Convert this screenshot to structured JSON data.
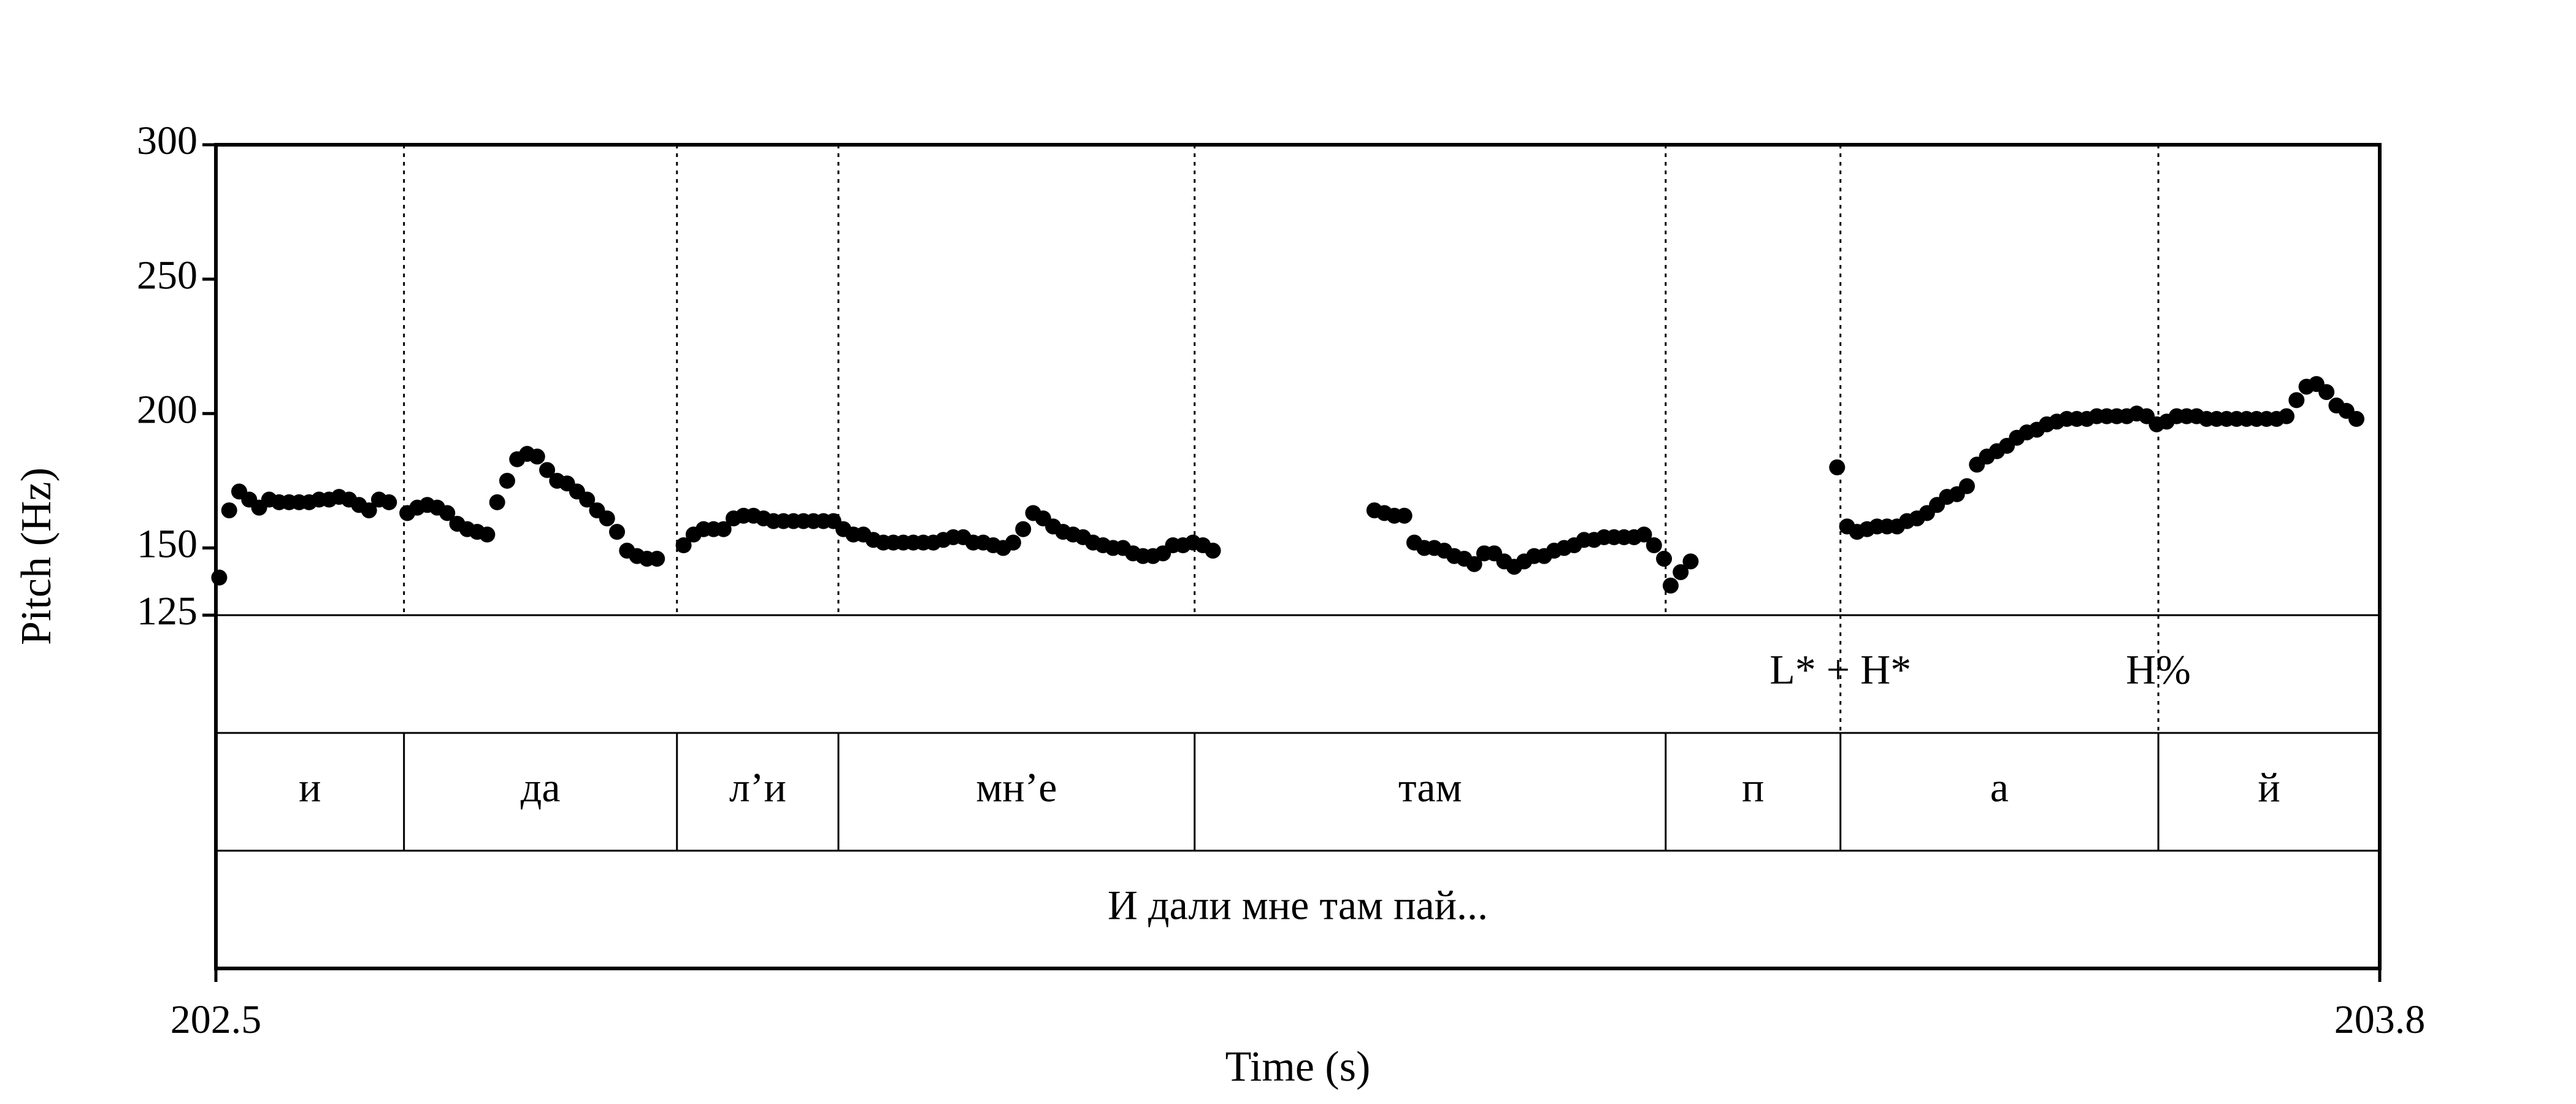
{
  "chart_data": {
    "type": "scatter",
    "xlabel": "Time (s)",
    "ylabel": "Pitch (Hz)",
    "xlim": [
      202.5,
      203.8
    ],
    "ylim": [
      125,
      300
    ],
    "x_ticks": [
      "202.5",
      "203.8"
    ],
    "y_ticks": [
      {
        "value": 300,
        "label": "300"
      },
      {
        "value": 250,
        "label": "250"
      },
      {
        "value": 200,
        "label": "200"
      },
      {
        "value": 150,
        "label": "150"
      },
      {
        "value": 125,
        "label": "125"
      }
    ],
    "boundaries": [
      202.613,
      202.777,
      202.874,
      203.088,
      203.371,
      203.476,
      203.667
    ],
    "tones": [
      {
        "label": "L* + H*",
        "time": 203.476
      },
      {
        "label": "H%",
        "time": 203.667
      }
    ],
    "segments": [
      {
        "label": "и",
        "start": 202.5,
        "end": 202.613
      },
      {
        "label": "да",
        "start": 202.613,
        "end": 202.777
      },
      {
        "label": "л’и",
        "start": 202.777,
        "end": 202.874
      },
      {
        "label": "мн’е",
        "start": 202.874,
        "end": 203.088
      },
      {
        "label": "там",
        "start": 203.088,
        "end": 203.371
      },
      {
        "label": "п",
        "start": 203.371,
        "end": 203.476
      },
      {
        "label": "а",
        "start": 203.476,
        "end": 203.667
      },
      {
        "label": "й",
        "start": 203.667,
        "end": 203.8
      }
    ],
    "sentence": "И дали мне там пай...",
    "series": [
      {
        "values": [
          [
            202.502,
            139
          ],
          [
            202.508,
            164
          ],
          [
            202.514,
            171
          ],
          [
            202.52,
            168
          ],
          [
            202.526,
            165
          ],
          [
            202.532,
            168
          ],
          [
            202.538,
            167
          ],
          [
            202.544,
            167
          ],
          [
            202.55,
            167
          ],
          [
            202.556,
            167
          ],
          [
            202.562,
            168
          ],
          [
            202.568,
            168
          ],
          [
            202.574,
            169
          ],
          [
            202.58,
            168
          ],
          [
            202.586,
            166
          ],
          [
            202.592,
            164
          ],
          [
            202.598,
            168
          ],
          [
            202.604,
            167
          ],
          [
            202.615,
            163
          ],
          [
            202.621,
            165
          ],
          [
            202.627,
            166
          ],
          [
            202.633,
            165
          ],
          [
            202.639,
            163
          ],
          [
            202.645,
            159
          ],
          [
            202.651,
            157
          ],
          [
            202.657,
            156
          ],
          [
            202.663,
            155
          ],
          [
            202.669,
            167
          ],
          [
            202.675,
            175
          ],
          [
            202.681,
            183
          ],
          [
            202.687,
            185
          ],
          [
            202.693,
            184
          ],
          [
            202.699,
            179
          ],
          [
            202.705,
            175
          ],
          [
            202.711,
            174
          ],
          [
            202.717,
            171
          ],
          [
            202.723,
            168
          ],
          [
            202.729,
            164
          ],
          [
            202.735,
            161
          ],
          [
            202.741,
            156
          ],
          [
            202.747,
            149
          ],
          [
            202.753,
            147
          ],
          [
            202.759,
            146
          ],
          [
            202.765,
            146
          ],
          [
            202.781,
            151
          ],
          [
            202.787,
            155
          ],
          [
            202.793,
            157
          ],
          [
            202.799,
            157
          ],
          [
            202.805,
            157
          ],
          [
            202.811,
            161
          ],
          [
            202.817,
            162
          ],
          [
            202.823,
            162
          ],
          [
            202.829,
            161
          ],
          [
            202.835,
            160
          ],
          [
            202.841,
            160
          ],
          [
            202.847,
            160
          ],
          [
            202.853,
            160
          ],
          [
            202.859,
            160
          ],
          [
            202.865,
            160
          ],
          [
            202.871,
            160
          ],
          [
            202.877,
            157
          ],
          [
            202.883,
            155
          ],
          [
            202.889,
            155
          ],
          [
            202.895,
            153
          ],
          [
            202.901,
            152
          ],
          [
            202.907,
            152
          ],
          [
            202.913,
            152
          ],
          [
            202.919,
            152
          ],
          [
            202.925,
            152
          ],
          [
            202.931,
            152
          ],
          [
            202.937,
            153
          ],
          [
            202.943,
            154
          ],
          [
            202.949,
            154
          ],
          [
            202.955,
            152
          ],
          [
            202.961,
            152
          ],
          [
            202.967,
            151
          ],
          [
            202.973,
            150
          ],
          [
            202.979,
            152
          ],
          [
            202.985,
            157
          ],
          [
            202.991,
            163
          ],
          [
            202.997,
            161
          ],
          [
            203.003,
            158
          ],
          [
            203.009,
            156
          ],
          [
            203.015,
            155
          ],
          [
            203.021,
            154
          ],
          [
            203.027,
            152
          ],
          [
            203.033,
            151
          ],
          [
            203.039,
            150
          ],
          [
            203.045,
            150
          ],
          [
            203.051,
            148
          ],
          [
            203.057,
            147
          ],
          [
            203.063,
            147
          ],
          [
            203.069,
            148
          ],
          [
            203.075,
            151
          ],
          [
            203.081,
            151
          ],
          [
            203.087,
            152
          ],
          [
            203.093,
            151
          ],
          [
            203.099,
            149
          ],
          [
            203.196,
            164
          ],
          [
            203.202,
            163
          ],
          [
            203.208,
            162
          ],
          [
            203.214,
            162
          ],
          [
            203.22,
            152
          ],
          [
            203.226,
            150
          ],
          [
            203.232,
            150
          ],
          [
            203.238,
            149
          ],
          [
            203.244,
            147
          ],
          [
            203.25,
            146
          ],
          [
            203.256,
            144
          ],
          [
            203.262,
            148
          ],
          [
            203.268,
            148
          ],
          [
            203.274,
            145
          ],
          [
            203.28,
            143
          ],
          [
            203.286,
            145
          ],
          [
            203.292,
            147
          ],
          [
            203.298,
            147
          ],
          [
            203.304,
            149
          ],
          [
            203.31,
            150
          ],
          [
            203.316,
            151
          ],
          [
            203.322,
            153
          ],
          [
            203.328,
            153
          ],
          [
            203.334,
            154
          ],
          [
            203.34,
            154
          ],
          [
            203.346,
            154
          ],
          [
            203.352,
            154
          ],
          [
            203.358,
            155
          ],
          [
            203.364,
            151
          ],
          [
            203.37,
            146
          ],
          [
            203.374,
            136
          ],
          [
            203.38,
            141
          ],
          [
            203.386,
            145
          ],
          [
            203.474,
            180
          ],
          [
            203.48,
            158
          ],
          [
            203.486,
            156
          ],
          [
            203.492,
            157
          ],
          [
            203.498,
            158
          ],
          [
            203.504,
            158
          ],
          [
            203.51,
            158
          ],
          [
            203.516,
            160
          ],
          [
            203.522,
            161
          ],
          [
            203.528,
            163
          ],
          [
            203.534,
            166
          ],
          [
            203.54,
            169
          ],
          [
            203.546,
            170
          ],
          [
            203.552,
            173
          ],
          [
            203.558,
            181
          ],
          [
            203.564,
            184
          ],
          [
            203.57,
            186
          ],
          [
            203.576,
            188
          ],
          [
            203.582,
            191
          ],
          [
            203.588,
            193
          ],
          [
            203.594,
            194
          ],
          [
            203.6,
            196
          ],
          [
            203.606,
            197
          ],
          [
            203.612,
            198
          ],
          [
            203.618,
            198
          ],
          [
            203.624,
            198
          ],
          [
            203.63,
            199
          ],
          [
            203.636,
            199
          ],
          [
            203.642,
            199
          ],
          [
            203.648,
            199
          ],
          [
            203.654,
            200
          ],
          [
            203.66,
            199
          ],
          [
            203.666,
            196
          ],
          [
            203.672,
            197
          ],
          [
            203.678,
            199
          ],
          [
            203.684,
            199
          ],
          [
            203.69,
            199
          ],
          [
            203.696,
            198
          ],
          [
            203.702,
            198
          ],
          [
            203.708,
            198
          ],
          [
            203.714,
            198
          ],
          [
            203.72,
            198
          ],
          [
            203.726,
            198
          ],
          [
            203.732,
            198
          ],
          [
            203.738,
            198
          ],
          [
            203.744,
            199
          ],
          [
            203.75,
            205
          ],
          [
            203.756,
            210
          ],
          [
            203.762,
            211
          ],
          [
            203.768,
            208
          ],
          [
            203.774,
            203
          ],
          [
            203.78,
            201
          ],
          [
            203.786,
            198
          ]
        ]
      }
    ]
  }
}
